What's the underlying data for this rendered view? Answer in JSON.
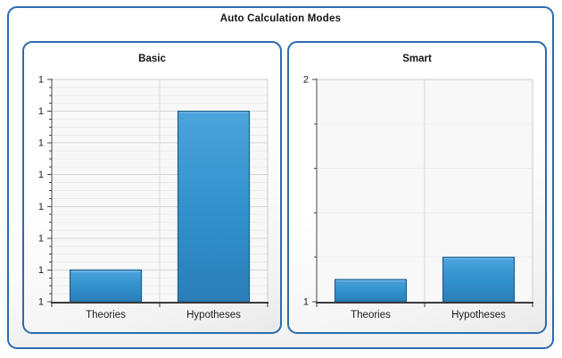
{
  "window": {
    "title": "Auto Calculation Modes"
  },
  "colors": {
    "panel_border": "#2c6cb0",
    "bar_fill_top": "#4ba3db",
    "bar_fill_bottom": "#2a7eb8",
    "bar_stroke": "#1e618f",
    "bar_highlight": "#79bce7",
    "axis_line": "#474747",
    "x_axis_line": "#3b3b3b",
    "grid_major": "#d7d7d7",
    "grid_minor": "#ebebeb",
    "plot_background": "#f8f8f8",
    "plot_border": "#cccccc",
    "text": "#1b1b1b"
  },
  "chart_data": [
    {
      "type": "bar",
      "title": "Basic",
      "categories": [
        "Theories",
        "Hypotheses"
      ],
      "values": [
        1.1,
        1.2
      ],
      "xlabel": "",
      "ylabel": "",
      "ylim": [
        1.08,
        1.22
      ],
      "y_major_step": 0.02,
      "y_minor_step": 0.005,
      "y_tick_labels": [
        "1",
        "1",
        "1",
        "1",
        "1",
        "1",
        "1",
        "1"
      ],
      "grid": "on",
      "legend": "none"
    },
    {
      "type": "bar",
      "title": "Smart",
      "categories": [
        "Theories",
        "Hypotheses"
      ],
      "values": [
        1.1,
        1.2
      ],
      "xlabel": "",
      "ylabel": "",
      "ylim": [
        1,
        2
      ],
      "y_major_step": 1,
      "y_minor_step": 0.2,
      "y_tick_labels": [
        "2",
        "1"
      ],
      "grid": "on",
      "legend": "none"
    }
  ]
}
